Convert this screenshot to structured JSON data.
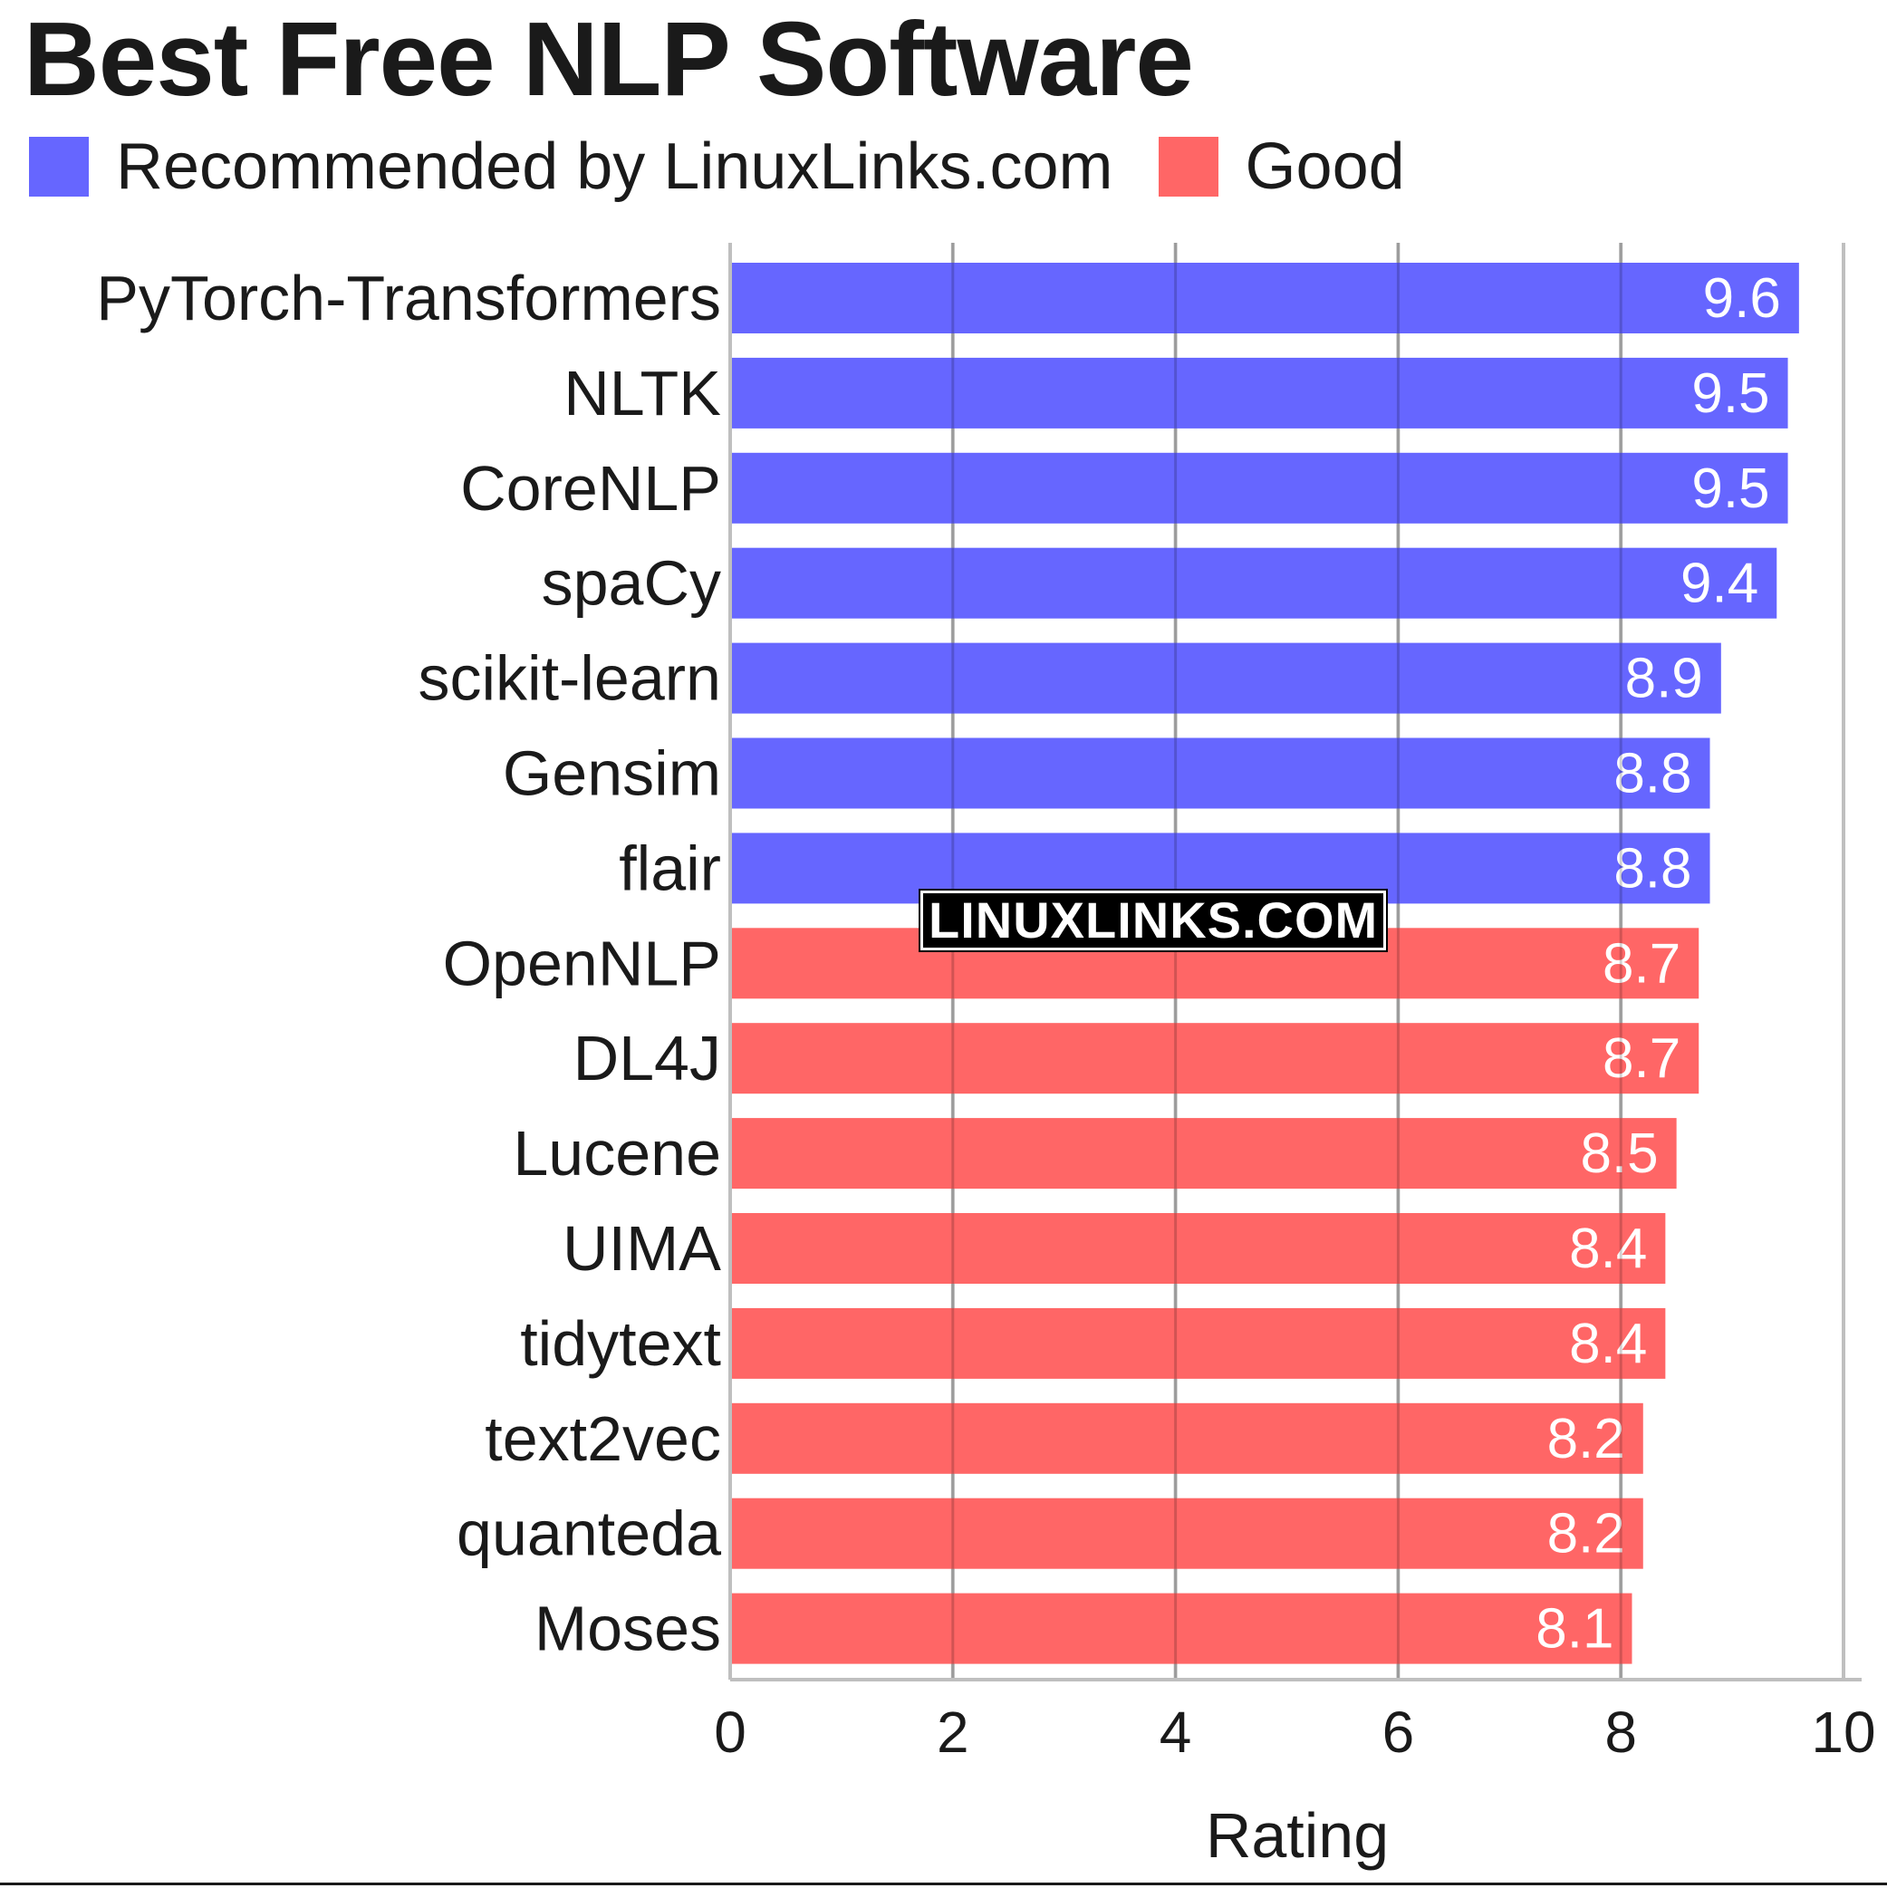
{
  "colors": {
    "recommended": "#6666ff",
    "good": "#ff6666",
    "grid": "#bfbfbf"
  },
  "chart_data": {
    "type": "bar",
    "orientation": "horizontal",
    "title": "Best Free NLP Software",
    "xlabel": "Rating",
    "xlim": [
      0,
      10
    ],
    "xticks": [
      0,
      2,
      4,
      6,
      8,
      10
    ],
    "grid": "vertical",
    "legend": [
      {
        "label": "Recommended by LinuxLinks.com",
        "color": "#6666ff"
      },
      {
        "label": "Good",
        "color": "#ff6666"
      }
    ],
    "legend_position": "top-left",
    "categories": [
      "PyTorch-Transformers",
      "NLTK",
      "CoreNLP",
      "spaCy",
      "scikit-learn",
      "Gensim",
      "flair",
      "OpenNLP",
      "DL4J",
      "Lucene",
      "UIMA",
      "tidytext",
      "text2vec",
      "quanteda",
      "Moses"
    ],
    "values": [
      9.6,
      9.5,
      9.5,
      9.4,
      8.9,
      8.8,
      8.8,
      8.7,
      8.7,
      8.5,
      8.4,
      8.4,
      8.2,
      8.2,
      8.1
    ],
    "value_labels": [
      "9.6",
      "9.5",
      "9.5",
      "9.4",
      "8.9",
      "8.8",
      "8.8",
      "8.7",
      "8.7",
      "8.5",
      "8.4",
      "8.4",
      "8.2",
      "8.2",
      "8.1"
    ],
    "groups": [
      "Recommended by LinuxLinks.com",
      "Recommended by LinuxLinks.com",
      "Recommended by LinuxLinks.com",
      "Recommended by LinuxLinks.com",
      "Recommended by LinuxLinks.com",
      "Recommended by LinuxLinks.com",
      "Recommended by LinuxLinks.com",
      "Good",
      "Good",
      "Good",
      "Good",
      "Good",
      "Good",
      "Good",
      "Good"
    ]
  },
  "watermark": "LINUXLINKS.COM"
}
